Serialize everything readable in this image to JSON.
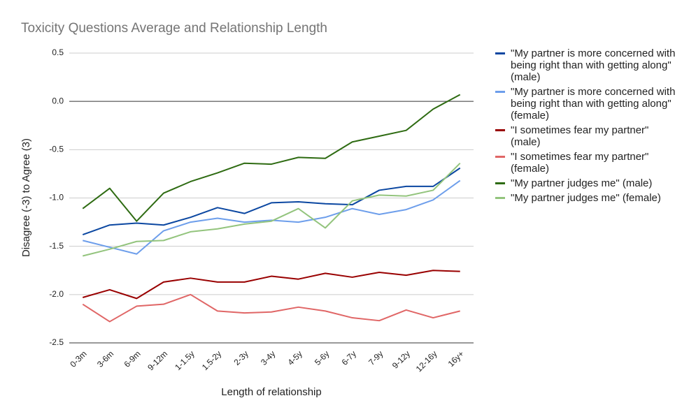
{
  "chart_data": {
    "type": "line",
    "title": "Toxicity Questions Average and Relationship Length",
    "x_label": "Length of relationship",
    "y_label": "Disagree (-3) to Agree (3)",
    "categories": [
      "0-3m",
      "3-6m",
      "6-9m",
      "9-12m",
      "1-1.5y",
      "1.5-2y",
      "2-3y",
      "3-4y",
      "4-5y",
      "5-6y",
      "6-7y",
      "7-9y",
      "9-12y",
      "12-16y",
      "16y+"
    ],
    "ylim": [
      -2.5,
      0.5
    ],
    "yticks": [
      {
        "value": -2.5,
        "label": "-2.5"
      },
      {
        "value": -2,
        "label": "-2.0"
      },
      {
        "value": -1.5,
        "label": "-1.5"
      },
      {
        "value": -1,
        "label": "-1.0"
      },
      {
        "value": -0.5,
        "label": "-0.5"
      },
      {
        "value": 0,
        "label": "0.0"
      },
      {
        "value": 0.5,
        "label": "0.5"
      }
    ],
    "grid": true,
    "zero_line": true,
    "legend": "right",
    "series": [
      {
        "name": "\"My partner is more concerned with being right than with getting along\" (male)",
        "color": "#0b47a1",
        "values": [
          -1.38,
          -1.28,
          -1.26,
          -1.28,
          -1.2,
          -1.1,
          -1.16,
          -1.05,
          -1.04,
          -1.06,
          -1.07,
          -0.92,
          -0.88,
          -0.88,
          -0.69
        ]
      },
      {
        "name": "\"My partner is more concerned with being right than with getting along\" (female)",
        "color": "#6d9eeb",
        "values": [
          -1.44,
          -1.51,
          -1.58,
          -1.34,
          -1.25,
          -1.21,
          -1.25,
          -1.23,
          -1.25,
          -1.2,
          -1.11,
          -1.17,
          -1.12,
          -1.02,
          -0.82
        ]
      },
      {
        "name": "\"I sometimes fear my partner\" (male)",
        "color": "#990000",
        "values": [
          -2.03,
          -1.95,
          -2.04,
          -1.87,
          -1.83,
          -1.87,
          -1.87,
          -1.81,
          -1.84,
          -1.78,
          -1.82,
          -1.77,
          -1.8,
          -1.75,
          -1.76
        ]
      },
      {
        "name": "\"I sometimes fear my partner\" (female)",
        "color": "#e06666",
        "values": [
          -2.1,
          -2.28,
          -2.12,
          -2.1,
          -2.0,
          -2.17,
          -2.19,
          -2.18,
          -2.13,
          -2.17,
          -2.24,
          -2.27,
          -2.16,
          -2.24,
          -2.17
        ]
      },
      {
        "name": "\"My partner judges me\" (male)",
        "color": "#2e6b12",
        "values": [
          -1.11,
          -0.9,
          -1.24,
          -0.95,
          -0.83,
          -0.74,
          -0.64,
          -0.65,
          -0.58,
          -0.59,
          -0.42,
          -0.36,
          -0.3,
          -0.08,
          0.07
        ]
      },
      {
        "name": "\"My partner judges me\" (female)",
        "color": "#93c47d",
        "values": [
          -1.6,
          -1.53,
          -1.45,
          -1.44,
          -1.35,
          -1.32,
          -1.27,
          -1.24,
          -1.11,
          -1.31,
          -1.03,
          -0.97,
          -0.98,
          -0.92,
          -0.64
        ]
      }
    ]
  }
}
